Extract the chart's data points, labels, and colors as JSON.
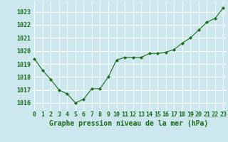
{
  "x": [
    0,
    1,
    2,
    3,
    4,
    5,
    6,
    7,
    8,
    9,
    10,
    11,
    12,
    13,
    14,
    15,
    16,
    17,
    18,
    19,
    20,
    21,
    22,
    23
  ],
  "y": [
    1019.4,
    1018.5,
    1017.8,
    1017.0,
    1016.7,
    1016.0,
    1016.3,
    1017.1,
    1017.1,
    1018.0,
    1019.3,
    1019.5,
    1019.5,
    1019.5,
    1019.8,
    1019.8,
    1019.9,
    1020.1,
    1020.6,
    1021.0,
    1021.6,
    1022.2,
    1022.5,
    1023.3
  ],
  "line_color": "#1a6b1a",
  "marker": "D",
  "markersize": 2.0,
  "linewidth": 0.8,
  "bg_color": "#cce8ee",
  "grid_color": "#ffffff",
  "xlabel": "Graphe pression niveau de la mer (hPa)",
  "xlabel_color": "#1a6b1a",
  "xlabel_fontsize": 7.0,
  "tick_color": "#1a6b1a",
  "tick_fontsize": 6.0,
  "ytick_labels": [
    1016,
    1017,
    1018,
    1019,
    1020,
    1021,
    1022,
    1023
  ],
  "ylim": [
    1015.4,
    1023.8
  ],
  "xlim": [
    -0.3,
    23.3
  ],
  "xtick_labels": [
    "0",
    "1",
    "2",
    "3",
    "4",
    "5",
    "6",
    "7",
    "8",
    "9",
    "10",
    "11",
    "12",
    "13",
    "14",
    "15",
    "16",
    "17",
    "18",
    "19",
    "20",
    "21",
    "22",
    "23"
  ]
}
